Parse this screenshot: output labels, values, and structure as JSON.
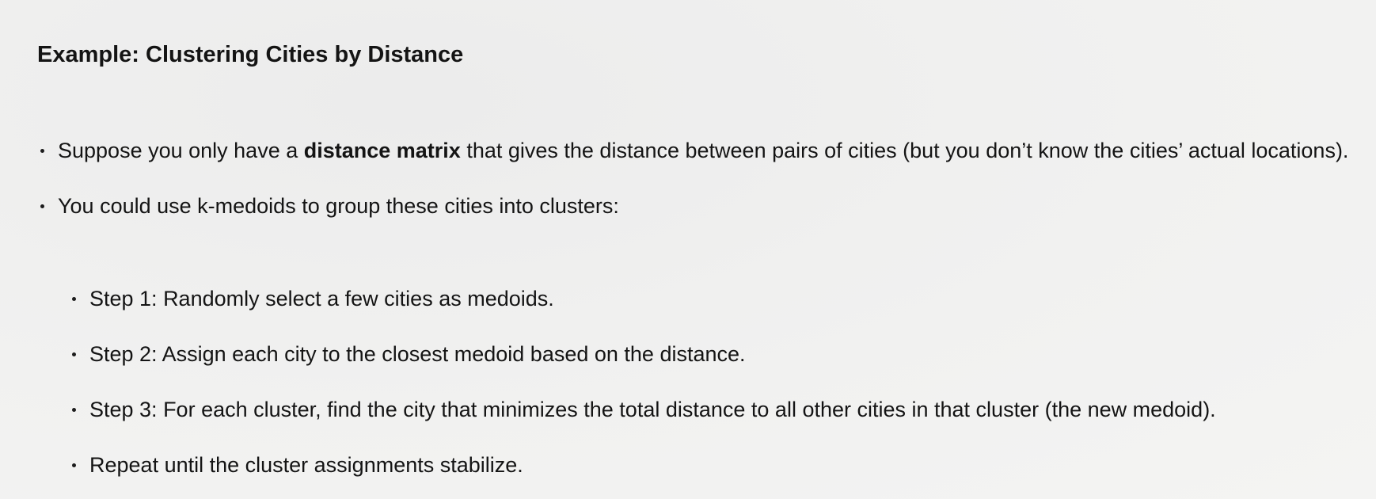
{
  "heading": "Example: Clustering Cities by Distance",
  "bullets": [
    {
      "pre": "Suppose you only have a ",
      "bold": "distance matrix",
      "post": " that gives the distance between pairs of cities (but you don’t know the cities’ actual locations)."
    },
    {
      "text": "You could use k-medoids to group these cities into clusters:"
    }
  ],
  "sub_bullets": [
    "Step 1: Randomly select a few cities as medoids.",
    "Step 2: Assign each city to the closest medoid based on the distance.",
    "Step 3: For each cluster, find the city that minimizes the total distance to all other cities in that cluster (the new medoid).",
    "Repeat until the cluster assignments stabilize."
  ]
}
